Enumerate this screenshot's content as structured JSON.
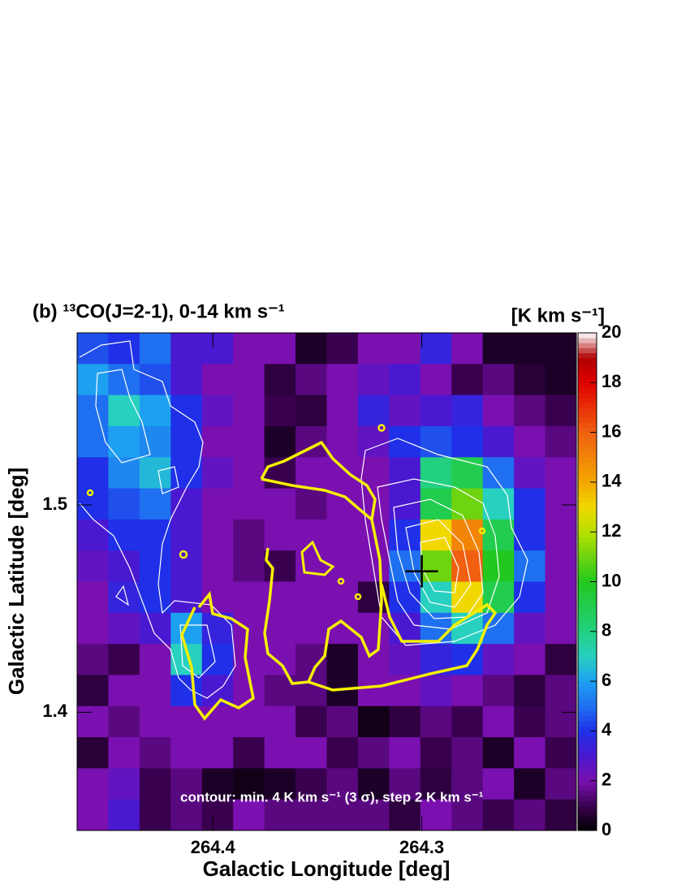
{
  "chart_data": {
    "type": "heatmap",
    "title": "(b) ¹³CO(J=2-1), 0-14 km s⁻¹",
    "x_label": "Galactic Longitude [deg]",
    "y_label": "Galactic Latitude [deg]",
    "colorbar_label": "[K km s⁻¹]",
    "annotation": "contour: min. 4 K km s⁻¹ (3 σ), step 2 K km s⁻¹",
    "xlim": [
      264.465,
      264.226
    ],
    "ylim": [
      1.343,
      1.583
    ],
    "xticks": [
      264.4,
      264.3
    ],
    "yticks": [
      1.4,
      1.5
    ],
    "zlim": [
      0,
      20
    ],
    "zticks": [
      0,
      2,
      4,
      6,
      8,
      10,
      12,
      14,
      16,
      18,
      20
    ],
    "colorscale": [
      [
        0,
        "#000000"
      ],
      [
        1,
        "#3a0050"
      ],
      [
        2,
        "#7a10b0"
      ],
      [
        3,
        "#4a18d0"
      ],
      [
        4,
        "#1f30e8"
      ],
      [
        5,
        "#1f70f0"
      ],
      [
        6,
        "#1ea0f0"
      ],
      [
        7,
        "#28d0c0"
      ],
      [
        8,
        "#22d080"
      ],
      [
        10,
        "#22c81e"
      ],
      [
        12,
        "#b8e000"
      ],
      [
        13,
        "#f0d800"
      ],
      [
        14,
        "#f4a800"
      ],
      [
        16,
        "#f06010"
      ],
      [
        18,
        "#e00000"
      ],
      [
        19,
        "#b00000"
      ],
      [
        20,
        "#ffffff"
      ]
    ],
    "z": [
      [
        4.5,
        4,
        5,
        3,
        3,
        2,
        2,
        0.5,
        1,
        2,
        2,
        3.5,
        2,
        0.5,
        0.5,
        0.5
      ],
      [
        6,
        5,
        4.5,
        3,
        2,
        2,
        0.8,
        1.5,
        2,
        2.5,
        3,
        2,
        1,
        1.5,
        0.7,
        0.5
      ],
      [
        5,
        7,
        6,
        4,
        2.5,
        2,
        1,
        0.8,
        2,
        3.5,
        2.5,
        3,
        3.5,
        2,
        1.5,
        1
      ],
      [
        5,
        6,
        5.5,
        4,
        2,
        2,
        0.5,
        1.5,
        2,
        2.5,
        4,
        4.5,
        4,
        3,
        2,
        1.5
      ],
      [
        4,
        5.5,
        6.5,
        4,
        2.5,
        2,
        1,
        2,
        2,
        2,
        3,
        8,
        9,
        5,
        2.5,
        2
      ],
      [
        4,
        4.5,
        5,
        3,
        2,
        2,
        2,
        1.5,
        2,
        2,
        3,
        9,
        11,
        7,
        4,
        2
      ],
      [
        3,
        4,
        4,
        3,
        2,
        1.5,
        2,
        2,
        2,
        2,
        4,
        13,
        15,
        9,
        4,
        2
      ],
      [
        2.5,
        3,
        4,
        3,
        2,
        1.5,
        1,
        2,
        2,
        2,
        5,
        11,
        16,
        10,
        5,
        2
      ],
      [
        2,
        3.5,
        4,
        3,
        2,
        2,
        2,
        2,
        2,
        0.8,
        4,
        7,
        13,
        9,
        4,
        2
      ],
      [
        2,
        2.5,
        3,
        6,
        3.5,
        2,
        2,
        2,
        2,
        2,
        3,
        5,
        7,
        5,
        2.5,
        2
      ],
      [
        1.5,
        1,
        2,
        7,
        4,
        2,
        2,
        1.5,
        0.5,
        2,
        2.5,
        3.5,
        4,
        2.5,
        2,
        0.8
      ],
      [
        0.8,
        2,
        2,
        4,
        3,
        2,
        1.5,
        1.5,
        0.5,
        2,
        2,
        2.5,
        2,
        1.5,
        0.8,
        1.5
      ],
      [
        2,
        1.5,
        2,
        2,
        2,
        2,
        2,
        1,
        1.5,
        0.3,
        0.8,
        1.5,
        1,
        2,
        1,
        1.5
      ],
      [
        0.7,
        2,
        1.5,
        2,
        2,
        1,
        2,
        2,
        1,
        1.5,
        2,
        1,
        1.5,
        0.5,
        2,
        1
      ],
      [
        2,
        2.5,
        1,
        1.5,
        0.5,
        0.3,
        0.5,
        1,
        1.5,
        0.5,
        1.5,
        0.8,
        1.5,
        2,
        0.5,
        1.5
      ],
      [
        2,
        3,
        1,
        1.5,
        1,
        2,
        1.5,
        1.5,
        1.5,
        1.5,
        0.8,
        2,
        1.5,
        1,
        1.5,
        0.8
      ]
    ],
    "marker": {
      "x": 264.3,
      "y": 1.468
    }
  }
}
